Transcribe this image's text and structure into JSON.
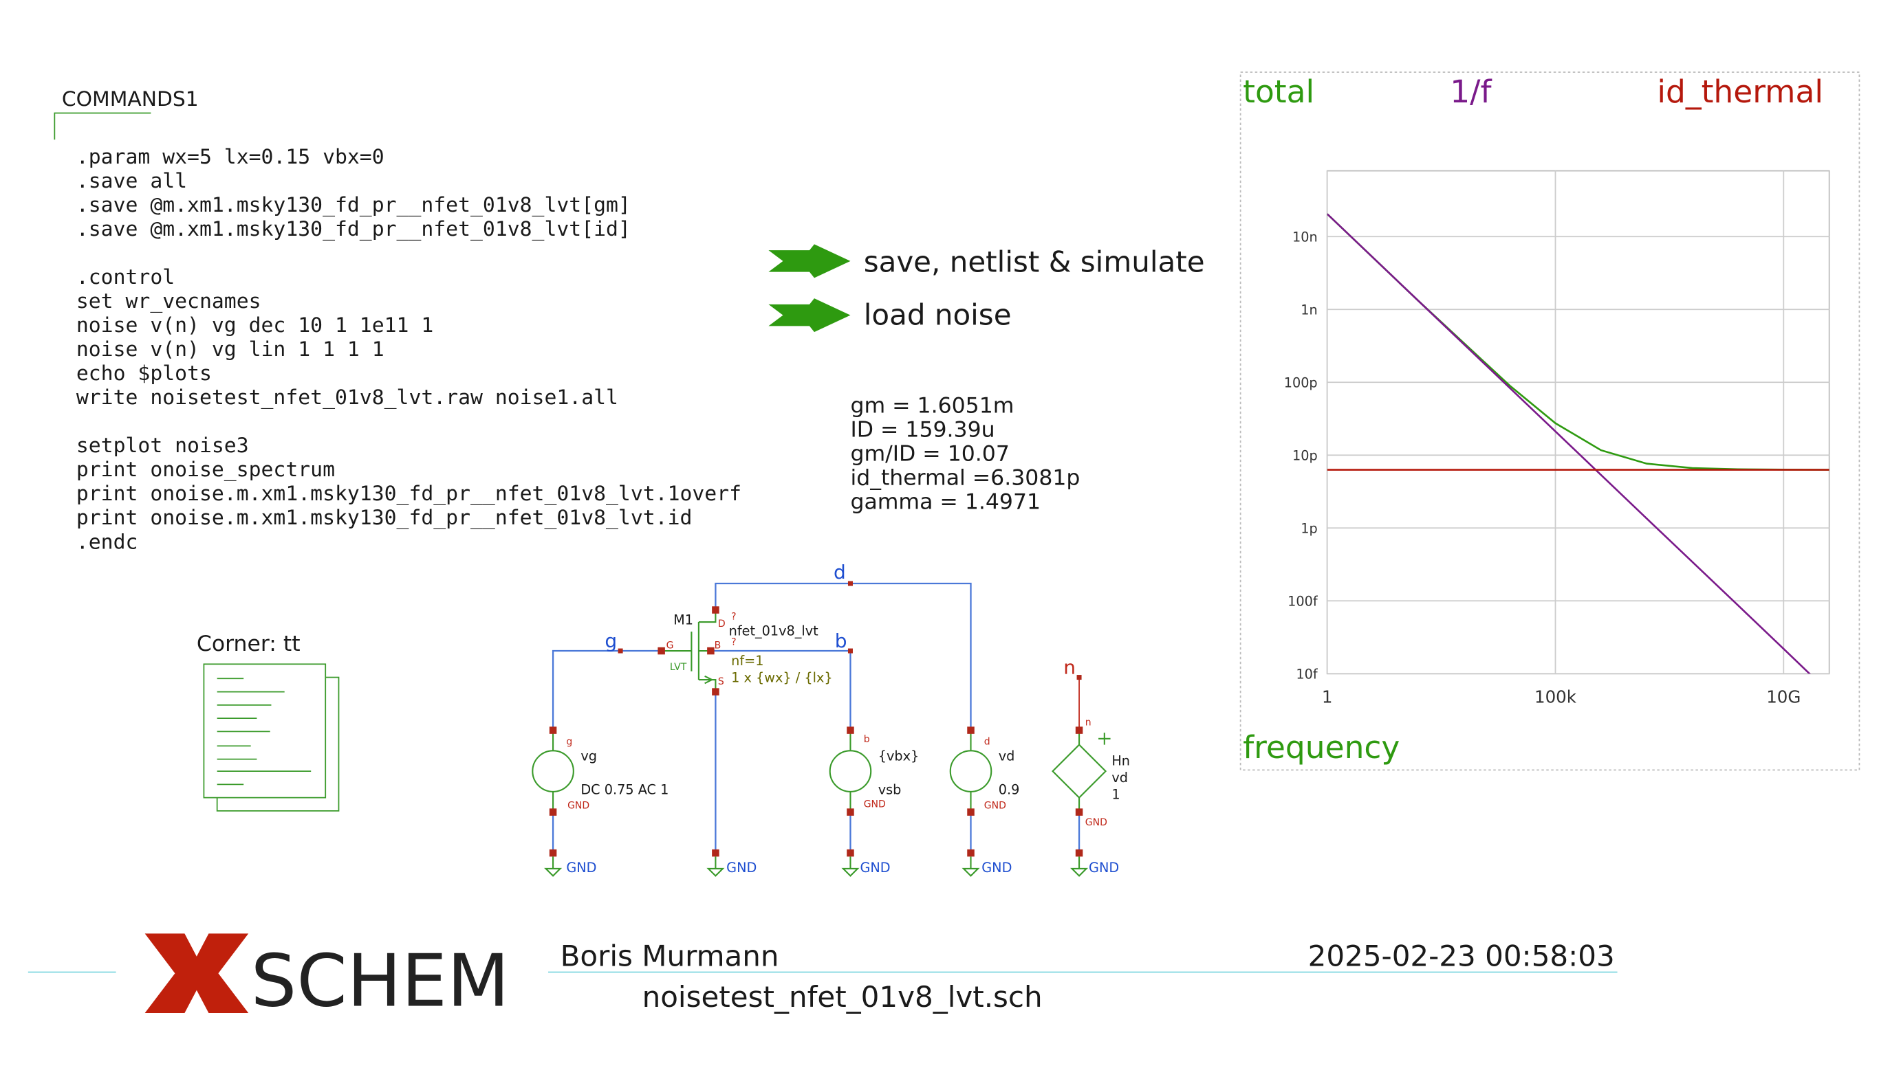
{
  "commands": {
    "title": "COMMANDS1",
    "blocks": [
      [
        ".param wx=5 lx=0.15 vbx=0",
        ".save all",
        ".save @m.xm1.msky130_fd_pr__nfet_01v8_lvt[gm]",
        ".save @m.xm1.msky130_fd_pr__nfet_01v8_lvt[id]"
      ],
      [
        ".control",
        "set wr_vecnames",
        "noise v(n) vg dec 10 1 1e11 1",
        "noise v(n) vg lin  1 1 1 1",
        "echo $plots",
        "write noisetest_nfet_01v8_lvt.raw noise1.all"
      ],
      [
        "setplot noise3",
        "print onoise_spectrum",
        "print onoise.m.xm1.msky130_fd_pr__nfet_01v8_lvt.1overf",
        "print onoise.m.xm1.msky130_fd_pr__nfet_01v8_lvt.id",
        ".endc"
      ]
    ]
  },
  "buttons": [
    "save, netlist & simulate",
    "load noise"
  ],
  "results": [
    "gm = 1.6051m",
    "ID = 159.39u",
    "gm/ID = 10.07",
    "id_thermal =6.3081p",
    "gamma = 1.4971"
  ],
  "corner": "Corner: tt",
  "schematic": {
    "nets": [
      "d",
      "g",
      "b",
      "n"
    ],
    "mosfet": {
      "name": "M1",
      "model": "nfet_01v8_lvt",
      "nf": "nf=1",
      "size": "1 x {wx} / {lx}",
      "pins": [
        "D",
        "G",
        "B",
        "S"
      ],
      "flags": [
        "?",
        "?"
      ],
      "variant": "LVT"
    },
    "vg": {
      "name": "vg",
      "value": "DC 0.75 AC 1",
      "pins": [
        "g",
        "GND"
      ]
    },
    "vsb": {
      "name": "vsb",
      "value": "{vbx}",
      "pins": [
        "b",
        "GND"
      ]
    },
    "vd": {
      "name": "vd",
      "value": "0.9",
      "pins": [
        "d",
        "GND"
      ]
    },
    "hn": {
      "name": "Hn",
      "ref": "vd",
      "gain": "1",
      "pins": [
        "n",
        "GND"
      ]
    },
    "ground": [
      "GND",
      "GND",
      "GND",
      "GND",
      "GND"
    ]
  },
  "graph": {
    "xlabel": "frequency",
    "log_x": true,
    "log_y": true,
    "grid": true,
    "xlim": [
      1,
      100000000000
    ],
    "ylim": [
      1e-14,
      8e-08
    ],
    "xticks": [
      1,
      {
        "value": 100000,
        "label": "100k"
      },
      {
        "value": 10000000000,
        "label": "10G"
      }
    ],
    "yticks": [
      {
        "value": 1e-08,
        "label": "10n"
      },
      {
        "value": 1e-09,
        "label": "1n"
      },
      {
        "value": 1e-10,
        "label": "100p"
      },
      {
        "value": 1e-11,
        "label": "10p"
      },
      {
        "value": 1e-12,
        "label": "1p"
      },
      {
        "value": 1e-13,
        "label": "100f"
      },
      {
        "value": 1e-14,
        "label": "10f"
      }
    ],
    "x": [
      1,
      100,
      10000,
      100000,
      1000000,
      10000000,
      100000000,
      1000000000,
      10000000000,
      100000000000
    ],
    "series": [
      {
        "name": "total",
        "color": "#2e9a10",
        "values": [
          2.05e-08,
          1.31e-09,
          9.01e-11,
          2.75e-11,
          1.17e-11,
          7.66e-12,
          6.65e-12,
          6.4e-12,
          6.33e-12,
          6.31e-12
        ]
      },
      {
        "name": "1/f",
        "color": "#7a1a8a",
        "values": [
          2.05e-08,
          1.31e-09,
          8.38e-11,
          2.12e-11,
          5.36e-12,
          1.35e-12,
          3.43e-13,
          8.7e-14,
          2.2e-14,
          5.5e-15
        ]
      },
      {
        "name": "id_thermal",
        "color": "#b5180c",
        "values": [
          6.31e-12,
          6.31e-12,
          6.31e-12,
          6.31e-12,
          6.31e-12,
          6.31e-12,
          6.31e-12,
          6.31e-12,
          6.31e-12,
          6.31e-12
        ]
      }
    ]
  },
  "footer": {
    "logo": "SCHEM",
    "author": "Boris Murmann",
    "date": "2025-02-23  00:58:03",
    "file": "noisetest_nfet_01v8_lvt.sch"
  }
}
